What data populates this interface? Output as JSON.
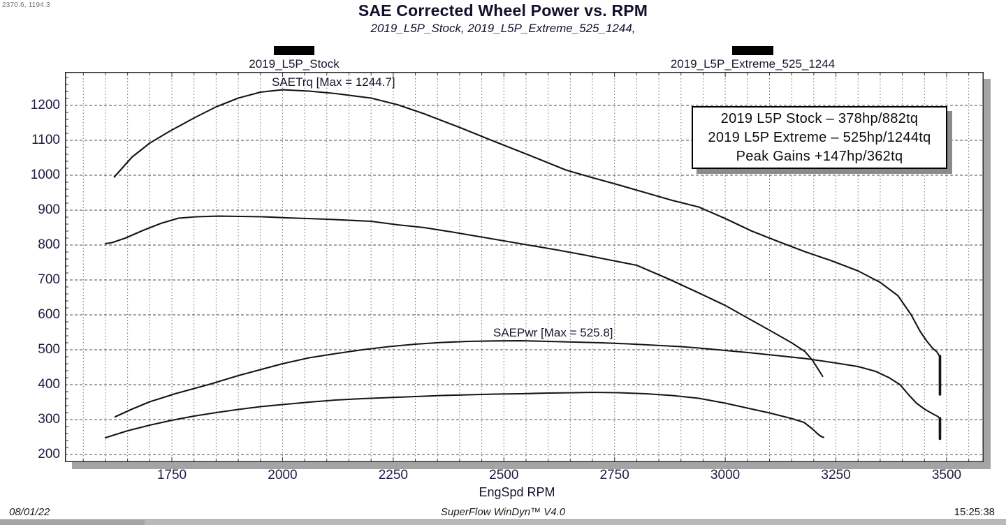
{
  "window": {
    "cursor_readout": "2370.6, 1194.3"
  },
  "header": {
    "title": "SAE Corrected Wheel Power vs. RPM",
    "subtitle": "2019_L5P_Stock, 2019_L5P_Extreme_525_1244,"
  },
  "legend": {
    "items": [
      {
        "label": "2019_L5P_Stock",
        "swatch_color": "#000000"
      },
      {
        "label": "2019_L5P_Extreme_525_1244",
        "swatch_color": "#000000"
      }
    ]
  },
  "info_box": {
    "lines": [
      "2019 L5P Stock – 378hp/882tq",
      "2019 L5P Extreme – 525hp/1244tq",
      "Peak Gains +147hp/362tq"
    ]
  },
  "footer": {
    "date": "08/01/22",
    "app": "SuperFlow WinDyn™ V4.0",
    "time": "15:25:38"
  },
  "chart_data": {
    "type": "line",
    "title": "SAE Corrected Wheel Power vs. RPM",
    "subtitle": "2019_L5P_Stock, 2019_L5P_Extreme_525_1244,",
    "xlabel": "EngSpd RPM",
    "ylabel": "",
    "xlim": [
      1509,
      3585
    ],
    "ylim": [
      182,
      1296
    ],
    "x_ticks": [
      1750,
      2000,
      2250,
      2500,
      2750,
      3000,
      3250,
      3500
    ],
    "y_ticks": [
      200,
      300,
      400,
      500,
      600,
      700,
      800,
      900,
      1000,
      1100,
      1200
    ],
    "grid": {
      "x_minor_step": 50,
      "y_major_step": 100,
      "y_minor_tick_step": 20,
      "style": "dotted-vertical, dashed-horizontal"
    },
    "legend_position": "top",
    "line_color": "#141414",
    "annotations": [
      {
        "text": "SAETrq [Max = 1244.7]"
      },
      {
        "text": "SAEPwr [Max = 525.8]"
      }
    ],
    "series": [
      {
        "name": "2019_L5P_Extreme_525_1244 SAETrq",
        "max": 1244.7,
        "points": [
          [
            1620,
            995
          ],
          [
            1660,
            1052
          ],
          [
            1700,
            1092
          ],
          [
            1745,
            1126
          ],
          [
            1800,
            1164
          ],
          [
            1850,
            1196
          ],
          [
            1900,
            1221
          ],
          [
            1950,
            1238
          ],
          [
            2000,
            1244.7
          ],
          [
            2060,
            1241
          ],
          [
            2120,
            1234
          ],
          [
            2200,
            1221
          ],
          [
            2260,
            1202
          ],
          [
            2320,
            1176
          ],
          [
            2400,
            1137
          ],
          [
            2480,
            1096
          ],
          [
            2560,
            1056
          ],
          [
            2640,
            1015
          ],
          [
            2700,
            993
          ],
          [
            2760,
            972
          ],
          [
            2820,
            950
          ],
          [
            2880,
            928
          ],
          [
            2940,
            909
          ],
          [
            3000,
            876
          ],
          [
            3060,
            840
          ],
          [
            3120,
            810
          ],
          [
            3180,
            781
          ],
          [
            3240,
            755
          ],
          [
            3300,
            726
          ],
          [
            3350,
            693
          ],
          [
            3390,
            655
          ],
          [
            3420,
            600
          ],
          [
            3440,
            553
          ],
          [
            3455,
            525
          ],
          [
            3468,
            505
          ],
          [
            3478,
            494
          ],
          [
            3484,
            482
          ]
        ]
      },
      {
        "name": "2019_L5P_Stock SAETrq",
        "max": 882.7,
        "points": [
          [
            1600,
            804
          ],
          [
            1615,
            807
          ],
          [
            1645,
            820
          ],
          [
            1685,
            842
          ],
          [
            1725,
            862
          ],
          [
            1765,
            877
          ],
          [
            1805,
            881
          ],
          [
            1855,
            882.7
          ],
          [
            1905,
            882
          ],
          [
            1955,
            881
          ],
          [
            2010,
            878
          ],
          [
            2100,
            874
          ],
          [
            2200,
            868
          ],
          [
            2260,
            858
          ],
          [
            2320,
            850
          ],
          [
            2380,
            838
          ],
          [
            2440,
            825
          ],
          [
            2500,
            812
          ],
          [
            2560,
            799
          ],
          [
            2620,
            786
          ],
          [
            2680,
            772
          ],
          [
            2740,
            757
          ],
          [
            2800,
            742
          ],
          [
            2870,
            704
          ],
          [
            2940,
            663
          ],
          [
            3000,
            627
          ],
          [
            3045,
            595
          ],
          [
            3100,
            556
          ],
          [
            3150,
            520
          ],
          [
            3180,
            495
          ],
          [
            3197,
            470
          ],
          [
            3207,
            450
          ],
          [
            3214,
            436
          ],
          [
            3220,
            424
          ]
        ]
      },
      {
        "name": "2019_L5P_Extreme_525_1244 SAEPwr",
        "max": 525.8,
        "points": [
          [
            1622,
            308
          ],
          [
            1660,
            330
          ],
          [
            1700,
            351
          ],
          [
            1760,
            375
          ],
          [
            1835,
            401
          ],
          [
            1900,
            426
          ],
          [
            1950,
            443
          ],
          [
            2000,
            460
          ],
          [
            2060,
            477
          ],
          [
            2120,
            489
          ],
          [
            2180,
            500
          ],
          [
            2240,
            509
          ],
          [
            2300,
            516
          ],
          [
            2360,
            521
          ],
          [
            2420,
            524
          ],
          [
            2480,
            525.5
          ],
          [
            2540,
            525.8
          ],
          [
            2600,
            524
          ],
          [
            2660,
            522
          ],
          [
            2720,
            520
          ],
          [
            2780,
            517
          ],
          [
            2840,
            513
          ],
          [
            2900,
            509
          ],
          [
            2940,
            505
          ],
          [
            3000,
            498
          ],
          [
            3060,
            491
          ],
          [
            3120,
            483
          ],
          [
            3180,
            475
          ],
          [
            3240,
            464
          ],
          [
            3300,
            452
          ],
          [
            3340,
            438
          ],
          [
            3370,
            420
          ],
          [
            3395,
            400
          ],
          [
            3415,
            370
          ],
          [
            3432,
            347
          ],
          [
            3450,
            330
          ],
          [
            3468,
            317
          ],
          [
            3480,
            309
          ],
          [
            3484,
            304
          ]
        ]
      },
      {
        "name": "2019_L5P_Stock SAEPwr",
        "max": 378,
        "points": [
          [
            1600,
            248
          ],
          [
            1650,
            268
          ],
          [
            1700,
            284
          ],
          [
            1750,
            298
          ],
          [
            1800,
            310
          ],
          [
            1850,
            320
          ],
          [
            1900,
            329
          ],
          [
            1950,
            337
          ],
          [
            2000,
            343
          ],
          [
            2060,
            350
          ],
          [
            2120,
            356
          ],
          [
            2180,
            360
          ],
          [
            2240,
            363
          ],
          [
            2300,
            366
          ],
          [
            2360,
            369
          ],
          [
            2420,
            371
          ],
          [
            2480,
            373
          ],
          [
            2540,
            374
          ],
          [
            2600,
            376
          ],
          [
            2660,
            377
          ],
          [
            2700,
            378
          ],
          [
            2760,
            377
          ],
          [
            2820,
            374
          ],
          [
            2880,
            369
          ],
          [
            2940,
            361
          ],
          [
            3000,
            347
          ],
          [
            3050,
            333
          ],
          [
            3100,
            319
          ],
          [
            3150,
            303
          ],
          [
            3178,
            292
          ],
          [
            3197,
            273
          ],
          [
            3208,
            260
          ],
          [
            3216,
            252
          ],
          [
            3222,
            249
          ]
        ]
      }
    ],
    "end_drops": [
      {
        "rpm": 3485,
        "from": 482,
        "to": 372
      },
      {
        "rpm": 3485,
        "from": 304,
        "to": 245
      }
    ]
  }
}
